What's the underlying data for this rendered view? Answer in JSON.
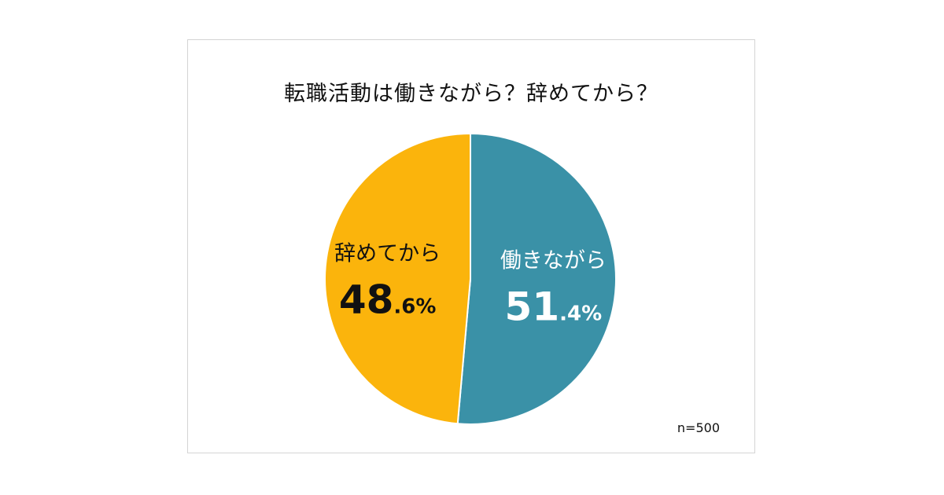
{
  "chart_data": {
    "type": "pie",
    "title": "転職活動は働きながら？辞めてから？",
    "slices": [
      {
        "label": "働きながら",
        "value": 51.4,
        "int_part": "51",
        "dec_part": ".4%",
        "color": "#3a91a7",
        "text_color": "#ffffff"
      },
      {
        "label": "辞めてから",
        "value": 48.6,
        "int_part": "48",
        "dec_part": ".6%",
        "color": "#fbb40c",
        "text_color": "#111111"
      }
    ],
    "start_angle": "12 o'clock",
    "direction": "clockwise",
    "note": "n=500"
  }
}
